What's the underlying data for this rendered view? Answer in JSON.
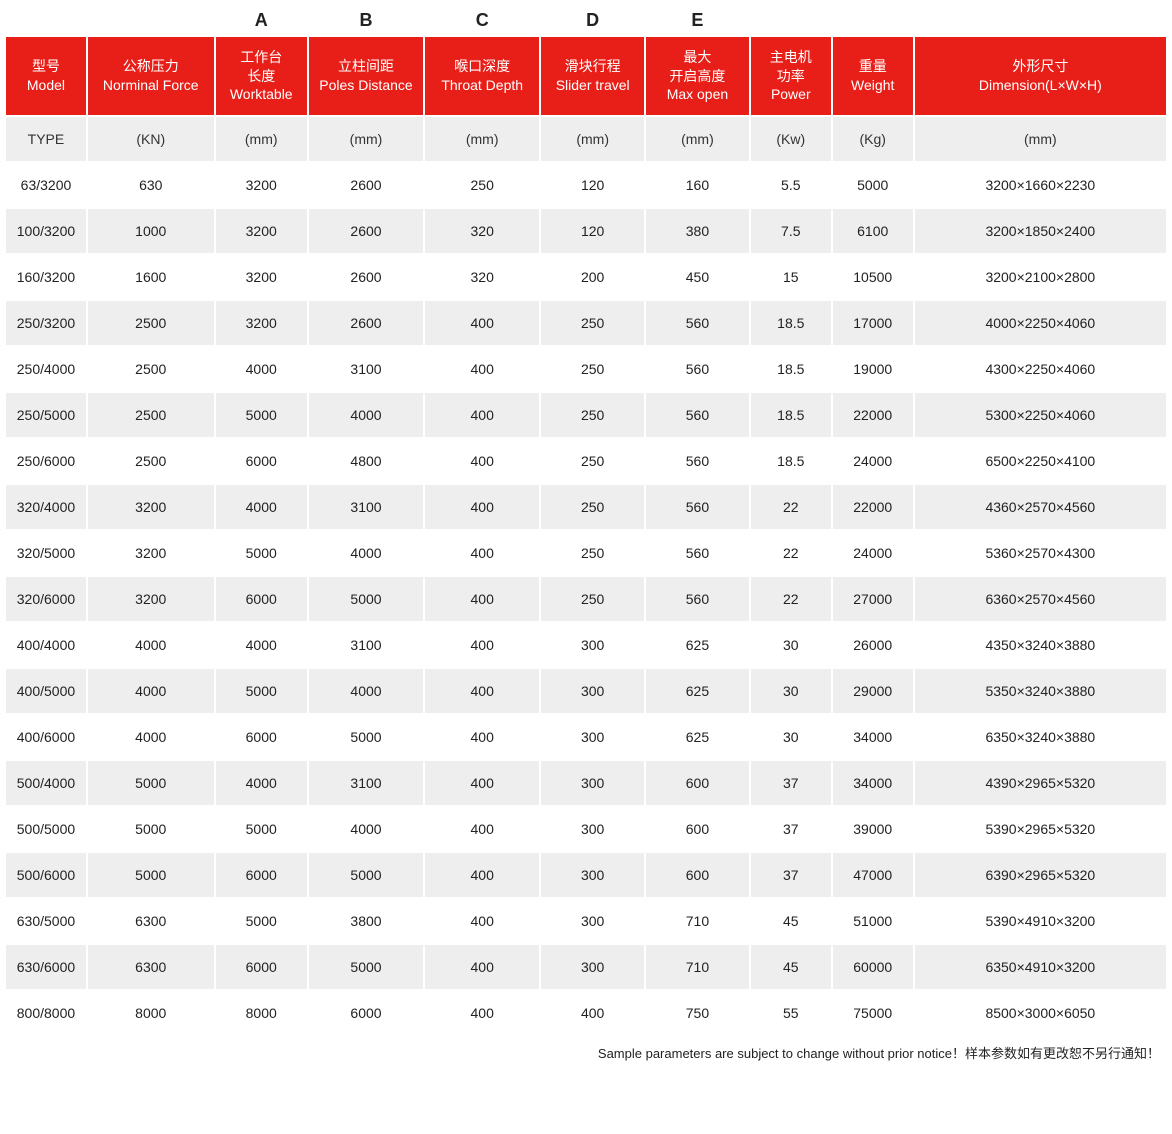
{
  "letters": [
    "",
    "",
    "A",
    "B",
    "C",
    "D",
    "E",
    "",
    "",
    ""
  ],
  "headers": [
    {
      "cn": "型号",
      "en": "Model"
    },
    {
      "cn": "公称压力",
      "en": "Norminal Force"
    },
    {
      "cn": "工作台\n长度",
      "en": "Worktable"
    },
    {
      "cn": "立柱间距",
      "en": "Poles Distance"
    },
    {
      "cn": "喉口深度",
      "en": "Throat Depth"
    },
    {
      "cn": "滑块行程",
      "en": "Slider travel"
    },
    {
      "cn": "最大\n开启高度",
      "en": "Max open"
    },
    {
      "cn": "主电机\n功率",
      "en": "Power"
    },
    {
      "cn": "重量",
      "en": "Weight"
    },
    {
      "cn": "外形尺寸",
      "en": "Dimension(L×W×H)"
    }
  ],
  "units": [
    "TYPE",
    "(KN)",
    "(mm)",
    "(mm)",
    "(mm)",
    "(mm)",
    "(mm)",
    "(Kw)",
    "(Kg)",
    "(mm)"
  ],
  "rows": [
    [
      "63/3200",
      "630",
      "3200",
      "2600",
      "250",
      "120",
      "160",
      "5.5",
      "5000",
      "3200×1660×2230"
    ],
    [
      "100/3200",
      "1000",
      "3200",
      "2600",
      "320",
      "120",
      "380",
      "7.5",
      "6100",
      "3200×1850×2400"
    ],
    [
      "160/3200",
      "1600",
      "3200",
      "2600",
      "320",
      "200",
      "450",
      "15",
      "10500",
      "3200×2100×2800"
    ],
    [
      "250/3200",
      "2500",
      "3200",
      "2600",
      "400",
      "250",
      "560",
      "18.5",
      "17000",
      "4000×2250×4060"
    ],
    [
      "250/4000",
      "2500",
      "4000",
      "3100",
      "400",
      "250",
      "560",
      "18.5",
      "19000",
      "4300×2250×4060"
    ],
    [
      "250/5000",
      "2500",
      "5000",
      "4000",
      "400",
      "250",
      "560",
      "18.5",
      "22000",
      "5300×2250×4060"
    ],
    [
      "250/6000",
      "2500",
      "6000",
      "4800",
      "400",
      "250",
      "560",
      "18.5",
      "24000",
      "6500×2250×4100"
    ],
    [
      "320/4000",
      "3200",
      "4000",
      "3100",
      "400",
      "250",
      "560",
      "22",
      "22000",
      "4360×2570×4560"
    ],
    [
      "320/5000",
      "3200",
      "5000",
      "4000",
      "400",
      "250",
      "560",
      "22",
      "24000",
      "5360×2570×4300"
    ],
    [
      "320/6000",
      "3200",
      "6000",
      "5000",
      "400",
      "250",
      "560",
      "22",
      "27000",
      "6360×2570×4560"
    ],
    [
      "400/4000",
      "4000",
      "4000",
      "3100",
      "400",
      "300",
      "625",
      "30",
      "26000",
      "4350×3240×3880"
    ],
    [
      "400/5000",
      "4000",
      "5000",
      "4000",
      "400",
      "300",
      "625",
      "30",
      "29000",
      "5350×3240×3880"
    ],
    [
      "400/6000",
      "4000",
      "6000",
      "5000",
      "400",
      "300",
      "625",
      "30",
      "34000",
      "6350×3240×3880"
    ],
    [
      "500/4000",
      "5000",
      "4000",
      "3100",
      "400",
      "300",
      "600",
      "37",
      "34000",
      "4390×2965×5320"
    ],
    [
      "500/5000",
      "5000",
      "5000",
      "4000",
      "400",
      "300",
      "600",
      "37",
      "39000",
      "5390×2965×5320"
    ],
    [
      "500/6000",
      "5000",
      "6000",
      "5000",
      "400",
      "300",
      "600",
      "37",
      "47000",
      "6390×2965×5320"
    ],
    [
      "630/5000",
      "6300",
      "5000",
      "3800",
      "400",
      "300",
      "710",
      "45",
      "51000",
      "5390×4910×3200"
    ],
    [
      "630/6000",
      "6300",
      "6000",
      "5000",
      "400",
      "300",
      "710",
      "45",
      "60000",
      "6350×4910×3200"
    ],
    [
      "800/8000",
      "8000",
      "8000",
      "6000",
      "400",
      "400",
      "750",
      "55",
      "75000",
      "8500×3000×6050"
    ]
  ],
  "colClasses": [
    "col-model",
    "col-force",
    "col-a",
    "col-b",
    "col-c",
    "col-d",
    "col-e",
    "col-pw",
    "col-wt",
    "col-dim"
  ],
  "colNames": [
    "model",
    "norminal-force",
    "worktable",
    "poles-distance",
    "throat-depth",
    "slider-travel",
    "max-open",
    "power",
    "weight",
    "dimension"
  ],
  "footnote": "Sample parameters are subject to change without prior notice！样本参数如有更改恕不另行通知！",
  "colors": {
    "header_bg": "#e81f18",
    "header_fg": "#ffffff",
    "row_alt_bg": "#eeeeee",
    "row_bg": "#ffffff",
    "text": "#222222"
  }
}
